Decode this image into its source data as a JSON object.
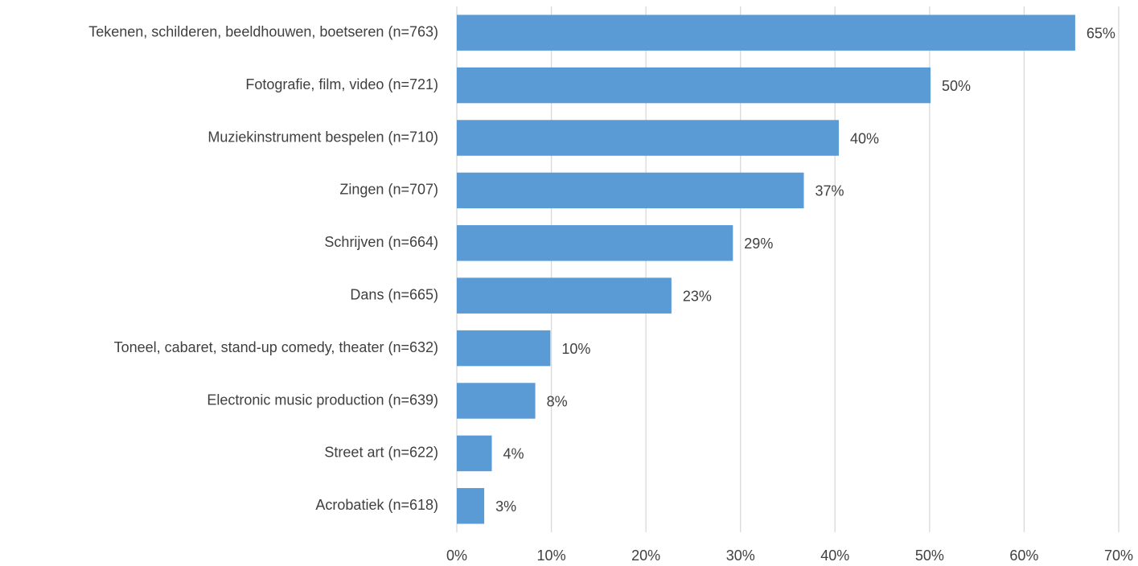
{
  "chart_data": {
    "type": "barh",
    "categories": [
      "Tekenen, schilderen, beeldhouwen, boetseren (n=763)",
      "Fotografie, film, video (n=721)",
      "Muziekinstrument bespelen (n=710)",
      "Zingen (n=707)",
      "Schrijven (n=664)",
      "Dans (n=665)",
      "Toneel, cabaret, stand-up comedy, theater (n=632)",
      "Electronic music production (n=639)",
      "Street art (n=622)",
      "Acrobatiek (n=618)"
    ],
    "values": [
      65.4,
      50.1,
      40.4,
      36.7,
      29.2,
      22.7,
      9.9,
      8.3,
      3.7,
      2.9
    ],
    "value_labels": [
      "65%",
      "50%",
      "40%",
      "37%",
      "29%",
      "23%",
      "10%",
      "8%",
      "4%",
      "3%"
    ],
    "color": "#5b9bd5",
    "xlim": [
      0,
      70
    ],
    "xticks": [
      {
        "value": 0,
        "label": "0%"
      },
      {
        "value": 10,
        "label": "10%"
      },
      {
        "value": 20,
        "label": "20%"
      },
      {
        "value": 30,
        "label": "30%"
      },
      {
        "value": 40,
        "label": "40%"
      },
      {
        "value": 50,
        "label": "50%"
      },
      {
        "value": 60,
        "label": "60%"
      },
      {
        "value": 70,
        "label": "70%"
      }
    ],
    "grid": true
  }
}
